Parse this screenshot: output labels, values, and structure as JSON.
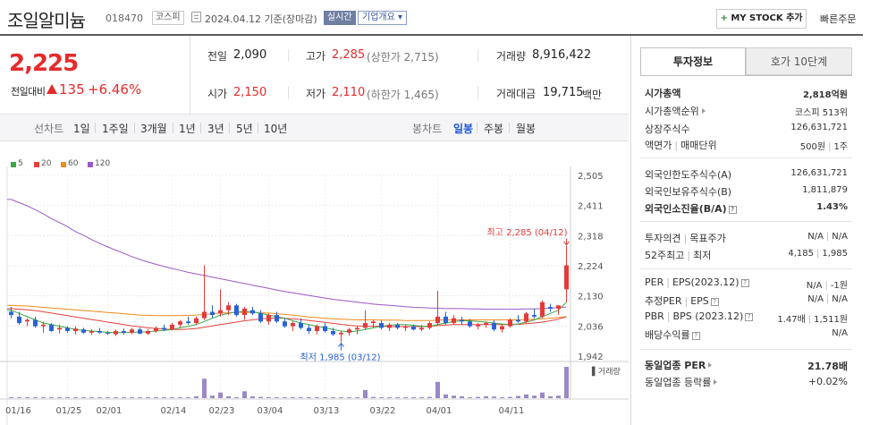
{
  "header": {
    "name": "조일알미늄",
    "code": "018470",
    "market": "코스피",
    "date": "2024.04.12  기준(장마감)",
    "realtime": "실시간",
    "company_info": "기업개요 ▾",
    "mystock_label": "MY STOCK 추가",
    "quick_order": "빠른주문"
  },
  "price": {
    "current": "2,225",
    "change_label": "전일대비",
    "change": "135",
    "change_pct": "+6.46%"
  },
  "summary": {
    "prev_close_label": "전일",
    "prev_close": "2,090",
    "high_label": "고가",
    "high": "2,285",
    "upper_limit": "(상한가 2,715)",
    "volume_label": "거래량",
    "volume": "8,916,422",
    "open_label": "시가",
    "open": "2,150",
    "low_label": "저가",
    "low": "2,110",
    "lower_limit": "(하한가 1,465)",
    "amount_label": "거래대금",
    "amount": "19,715",
    "amount_unit": "백만"
  },
  "toolbar": {
    "line_chart": "선차트",
    "periods": [
      "1일",
      "1주일",
      "3개월",
      "1년",
      "3년",
      "5년",
      "10년"
    ],
    "candle_chart": "봉차트",
    "candle_periods": [
      "일봉",
      "주봉",
      "월봉"
    ],
    "active_candle": "일봉"
  },
  "legend": [
    {
      "label": "5",
      "color": "#3aa845"
    },
    {
      "label": "20",
      "color": "#e5413b"
    },
    {
      "label": "60",
      "color": "#f08a1c"
    },
    {
      "label": "120",
      "color": "#9b59c6"
    }
  ],
  "chart_data": {
    "type": "candlestick",
    "y_ticks": [
      "2,505",
      "2,411",
      "2,318",
      "2,224",
      "2,130",
      "2,036",
      "1,942"
    ],
    "ylim": [
      1942,
      2505
    ],
    "x_ticks": [
      "01/16",
      "01/25",
      "02/01",
      "02/14",
      "02/23",
      "03/04",
      "03/13",
      "03/22",
      "04/01",
      "04/11"
    ],
    "annotations": {
      "high": "최고 2,285 (04/12)",
      "low": "최저 1,985 (03/12)"
    },
    "volume_label": "거래량",
    "candles": [
      [
        2080,
        2095,
        2060,
        2070
      ],
      [
        2065,
        2080,
        2040,
        2045
      ],
      [
        2050,
        2060,
        2035,
        2055
      ],
      [
        2055,
        2065,
        2030,
        2035
      ],
      [
        2035,
        2050,
        2015,
        2040
      ],
      [
        2040,
        2045,
        2018,
        2020
      ],
      [
        2025,
        2040,
        2012,
        2030
      ],
      [
        2030,
        2035,
        2015,
        2020
      ],
      [
        2020,
        2035,
        2010,
        2028
      ],
      [
        2025,
        2030,
        2012,
        2015
      ],
      [
        2015,
        2025,
        2008,
        2020
      ],
      [
        2020,
        2030,
        2012,
        2015
      ],
      [
        2015,
        2020,
        2008,
        2012
      ],
      [
        2010,
        2025,
        2005,
        2020
      ],
      [
        2020,
        2028,
        2010,
        2015
      ],
      [
        2015,
        2030,
        2010,
        2025
      ],
      [
        2025,
        2030,
        2010,
        2012
      ],
      [
        2012,
        2025,
        2008,
        2020
      ],
      [
        2020,
        2035,
        2015,
        2030
      ],
      [
        2030,
        2040,
        2020,
        2025
      ],
      [
        2025,
        2045,
        2022,
        2040
      ],
      [
        2040,
        2055,
        2030,
        2050
      ],
      [
        2050,
        2065,
        2040,
        2045
      ],
      [
        2045,
        2065,
        2040,
        2060
      ],
      [
        2060,
        2225,
        2055,
        2080
      ],
      [
        2080,
        2100,
        2060,
        2070
      ],
      [
        2075,
        2150,
        2065,
        2085
      ],
      [
        2085,
        2110,
        2070,
        2100
      ],
      [
        2100,
        2105,
        2065,
        2070
      ],
      [
        2070,
        2095,
        2055,
        2090
      ],
      [
        2085,
        2095,
        2070,
        2075
      ],
      [
        2075,
        2085,
        2045,
        2050
      ],
      [
        2050,
        2075,
        2040,
        2070
      ],
      [
        2070,
        2080,
        2045,
        2050
      ],
      [
        2050,
        2060,
        2030,
        2035
      ],
      [
        2035,
        2050,
        2020,
        2045
      ],
      [
        2045,
        2060,
        2025,
        2030
      ],
      [
        2030,
        2040,
        2012,
        2020
      ],
      [
        2020,
        2040,
        2010,
        2035
      ],
      [
        2035,
        2045,
        2015,
        2020
      ],
      [
        2020,
        2030,
        2005,
        2010
      ],
      [
        2010,
        2020,
        1985,
        2015
      ],
      [
        2015,
        2030,
        2005,
        2025
      ],
      [
        2025,
        2035,
        2010,
        2030
      ],
      [
        2030,
        2085,
        2025,
        2045
      ],
      [
        2045,
        2055,
        2030,
        2050
      ],
      [
        2045,
        2055,
        2025,
        2030
      ],
      [
        2030,
        2045,
        2020,
        2040
      ],
      [
        2040,
        2045,
        2025,
        2030
      ],
      [
        2030,
        2040,
        2020,
        2035
      ],
      [
        2035,
        2040,
        2022,
        2025
      ],
      [
        2025,
        2040,
        2020,
        2030
      ],
      [
        2030,
        2050,
        2025,
        2045
      ],
      [
        2045,
        2145,
        2040,
        2065
      ],
      [
        2065,
        2080,
        2040,
        2045
      ],
      [
        2045,
        2070,
        2040,
        2060
      ],
      [
        2055,
        2065,
        2040,
        2050
      ],
      [
        2050,
        2058,
        2030,
        2035
      ],
      [
        2035,
        2045,
        2025,
        2040
      ],
      [
        2040,
        2050,
        2030,
        2045
      ],
      [
        2045,
        2055,
        2020,
        2025
      ],
      [
        2025,
        2040,
        2015,
        2035
      ],
      [
        2035,
        2060,
        2030,
        2055
      ],
      [
        2055,
        2070,
        2045,
        2050
      ],
      [
        2050,
        2080,
        2045,
        2075
      ],
      [
        2070,
        2090,
        2060,
        2065
      ],
      [
        2065,
        2115,
        2060,
        2110
      ],
      [
        2095,
        2105,
        2080,
        2090
      ],
      [
        2090,
        2100,
        2070,
        2100
      ],
      [
        2150,
        2285,
        2110,
        2225
      ]
    ],
    "volume": [
      0.02,
      0.01,
      0.02,
      0.01,
      0.01,
      0.01,
      0.01,
      0.01,
      0.01,
      0.01,
      0.01,
      0.01,
      0.01,
      0.01,
      0.01,
      0.01,
      0.01,
      0.01,
      0.01,
      0.02,
      0.02,
      0.02,
      0.02,
      0.06,
      0.62,
      0.08,
      0.18,
      0.06,
      0.03,
      0.22,
      0.06,
      0.04,
      0.03,
      0.03,
      0.02,
      0.02,
      0.02,
      0.02,
      0.02,
      0.02,
      0.02,
      0.03,
      0.02,
      0.03,
      0.26,
      0.04,
      0.03,
      0.02,
      0.02,
      0.02,
      0.02,
      0.02,
      0.04,
      0.52,
      0.12,
      0.08,
      0.06,
      0.03,
      0.04,
      0.06,
      0.05,
      0.03,
      0.04,
      0.07,
      0.12,
      0.08,
      0.18,
      0.06,
      0.08,
      1.0
    ],
    "ma120": [
      2430,
      2420,
      2410,
      2398,
      2385,
      2370,
      2358,
      2345,
      2330,
      2318,
      2305,
      2293,
      2282,
      2272,
      2262,
      2252,
      2243,
      2235,
      2228,
      2221,
      2215,
      2209,
      2203,
      2198,
      2193,
      2188,
      2183,
      2178,
      2173,
      2168,
      2163,
      2158,
      2153,
      2148,
      2143,
      2139,
      2135,
      2131,
      2127,
      2123,
      2119,
      2116,
      2113,
      2110,
      2107,
      2104,
      2102,
      2100,
      2098,
      2096,
      2094,
      2093,
      2092,
      2091,
      2090,
      2090,
      2090,
      2089,
      2089,
      2088,
      2088,
      2088,
      2088,
      2088,
      2089,
      2089,
      2090,
      2091,
      2093,
      2095
    ],
    "ma60": [
      2100,
      2099,
      2098,
      2096,
      2094,
      2092,
      2090,
      2088,
      2086,
      2084,
      2082,
      2080,
      2078,
      2076,
      2074,
      2072,
      2070,
      2069,
      2068,
      2068,
      2068,
      2068,
      2069,
      2070,
      2072,
      2074,
      2076,
      2077,
      2078,
      2078,
      2078,
      2077,
      2076,
      2074,
      2072,
      2070,
      2067,
      2064,
      2062,
      2060,
      2058,
      2057,
      2056,
      2055,
      2055,
      2055,
      2054,
      2054,
      2054,
      2053,
      2053,
      2053,
      2053,
      2054,
      2055,
      2055,
      2055,
      2055,
      2055,
      2055,
      2055,
      2055,
      2055,
      2055,
      2056,
      2057,
      2058,
      2060,
      2062,
      2065
    ],
    "ma20": [
      2090,
      2088,
      2086,
      2084,
      2080,
      2076,
      2072,
      2068,
      2064,
      2060,
      2056,
      2052,
      2048,
      2044,
      2040,
      2036,
      2033,
      2030,
      2028,
      2026,
      2025,
      2025,
      2026,
      2028,
      2032,
      2036,
      2040,
      2044,
      2048,
      2052,
      2055,
      2058,
      2060,
      2061,
      2060,
      2058,
      2056,
      2053,
      2050,
      2047,
      2044,
      2041,
      2038,
      2036,
      2035,
      2035,
      2035,
      2034,
      2034,
      2034,
      2034,
      2034,
      2035,
      2037,
      2039,
      2040,
      2040,
      2040,
      2040,
      2040,
      2040,
      2040,
      2040,
      2041,
      2043,
      2045,
      2048,
      2052,
      2057,
      2065
    ],
    "ma5": [
      2085,
      2075,
      2065,
      2055,
      2045,
      2040,
      2035,
      2030,
      2025,
      2022,
      2020,
      2018,
      2016,
      2015,
      2015,
      2016,
      2017,
      2018,
      2020,
      2022,
      2025,
      2030,
      2035,
      2040,
      2050,
      2060,
      2070,
      2075,
      2080,
      2082,
      2080,
      2075,
      2070,
      2065,
      2060,
      2052,
      2045,
      2040,
      2035,
      2030,
      2025,
      2020,
      2018,
      2020,
      2025,
      2030,
      2035,
      2038,
      2040,
      2040,
      2038,
      2035,
      2035,
      2040,
      2045,
      2050,
      2052,
      2052,
      2050,
      2048,
      2045,
      2042,
      2040,
      2042,
      2048,
      2055,
      2065,
      2075,
      2085,
      2110
    ]
  },
  "panel": {
    "tab_active": "투자정보",
    "tab_inactive": "호가 10단계",
    "market_cap_label": "시가총액",
    "market_cap": "2,818억원",
    "cap_rank_label": "시가총액순위",
    "cap_rank": "코스피 513위",
    "shares_label": "상장주식수",
    "shares": "126,631,721",
    "par_label": "액면가",
    "par_label2": "매매단위",
    "par": "500원",
    "unit": "1주",
    "foreign_limit_label": "외국인한도주식수(A)",
    "foreign_limit": "126,631,721",
    "foreign_hold_label": "외국인보유주식수(B)",
    "foreign_hold": "1,811,879",
    "foreign_ratio_label": "외국인소진율(B/A)",
    "foreign_ratio": "1.43%",
    "opinion_label": "투자의견",
    "target_label": "목표주가",
    "opinion": "N/A",
    "target": "N/A",
    "w52_high_label": "52주최고",
    "w52_low_label": "최저",
    "w52_high": "4,185",
    "w52_low": "1,985",
    "per_label": "PER",
    "eps_label": "EPS(2023.12)",
    "per": "N/A",
    "eps": "-1원",
    "est_per_label": "추정PER",
    "est_eps_label": "EPS",
    "est_per": "N/A",
    "est_eps": "N/A",
    "pbr_label": "PBR",
    "bps_label": "BPS (2023.12)",
    "pbr": "1.47배",
    "bps": "1,511원",
    "div_label": "배당수익률",
    "div": "N/A",
    "sector_per_label": "동일업종 PER",
    "sector_per": "21.78배",
    "sector_chg_label": "동일업종 등락률",
    "sector_chg": "+0.02%"
  }
}
